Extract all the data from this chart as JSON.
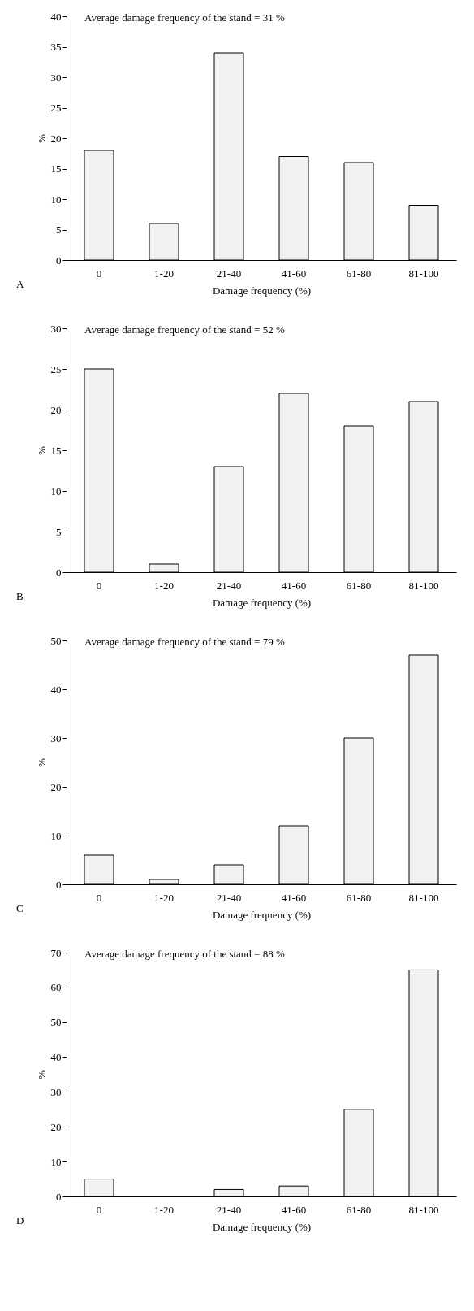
{
  "chart_data": [
    {
      "type": "bar",
      "categories": [
        "0",
        "1-20",
        "21-40",
        "41-60",
        "61-80",
        "81-100"
      ],
      "values": [
        18,
        6,
        34,
        17,
        16,
        9
      ],
      "color": "#f2f2f2",
      "xlabel": "Damage frequency (%)",
      "ylabel": "%",
      "ylim": [
        0,
        40
      ],
      "yticks": [
        0,
        5,
        10,
        15,
        20,
        25,
        30,
        35,
        40
      ],
      "grid": false,
      "annotations": [
        "Average damage frequency of the stand = 31 %",
        "A"
      ]
    },
    {
      "type": "bar",
      "categories": [
        "0",
        "1-20",
        "21-40",
        "41-60",
        "61-80",
        "81-100"
      ],
      "values": [
        25,
        1,
        13,
        22,
        18,
        21
      ],
      "color": "#f2f2f2",
      "xlabel": "Damage frequency (%)",
      "ylabel": "%",
      "ylim": [
        0,
        30
      ],
      "yticks": [
        0,
        5,
        10,
        15,
        20,
        25,
        30
      ],
      "grid": false,
      "annotations": [
        "Average damage frequency of the stand = 52 %",
        "B"
      ]
    },
    {
      "type": "bar",
      "categories": [
        "0",
        "1-20",
        "21-40",
        "41-60",
        "61-80",
        "81-100"
      ],
      "values": [
        6,
        1,
        4,
        12,
        30,
        47
      ],
      "color": "#f2f2f2",
      "xlabel": "Damage frequency (%)",
      "ylabel": "%",
      "ylim": [
        0,
        50
      ],
      "yticks": [
        0,
        10,
        20,
        30,
        40,
        50
      ],
      "grid": false,
      "annotations": [
        "Average damage frequency of the stand = 79 %",
        "C"
      ]
    },
    {
      "type": "bar",
      "categories": [
        "0",
        "1-20",
        "21-40",
        "41-60",
        "61-80",
        "81-100"
      ],
      "values": [
        5,
        0,
        2,
        3,
        25,
        65
      ],
      "color": "#f2f2f2",
      "xlabel": "Damage frequency (%)",
      "ylabel": "%",
      "ylim": [
        0,
        70
      ],
      "yticks": [
        0,
        10,
        20,
        30,
        40,
        50,
        60,
        70
      ],
      "grid": false,
      "annotations": [
        "Average damage frequency of the stand = 88 %",
        "D"
      ]
    }
  ]
}
